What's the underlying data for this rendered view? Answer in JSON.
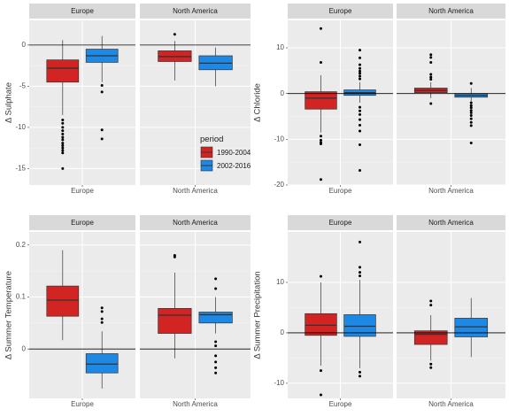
{
  "legend": {
    "title": "period",
    "position": "inside-top-left-panel-right",
    "items": [
      {
        "label": "1990-2004",
        "color": "#d32424"
      },
      {
        "label": "2002-2016",
        "color": "#1e88e5"
      }
    ]
  },
  "colors": {
    "panel_background": "#ebebeb",
    "strip_background": "#d9d9d9",
    "grid_major": "#ffffff",
    "zero_line": "#000000",
    "outlier": "#000000"
  },
  "chart_data": [
    {
      "type": "boxplot",
      "ylabel": "Δ Sulphate",
      "ylim": [
        -17,
        3
      ],
      "yticks": [
        0,
        -5,
        -10,
        -15
      ],
      "facets": [
        {
          "strip": "Europe",
          "xlabel": "Europe",
          "boxes": [
            {
              "series": "1990-2004",
              "q1": -4.5,
              "median": -2.8,
              "q3": -1.8,
              "whisker_low": -8.5,
              "whisker_high": 0.6,
              "outliers": [
                -9.1,
                -9.5,
                -10.0,
                -10.4,
                -10.8,
                -11.2,
                -11.5,
                -11.9,
                -12.2,
                -12.5,
                -12.8,
                -13.1,
                -15.0
              ]
            },
            {
              "series": "2002-2016",
              "q1": -2.1,
              "median": -1.3,
              "q3": -0.5,
              "whisker_low": -4.5,
              "whisker_high": 1.1,
              "outliers": [
                -4.9,
                -5.7,
                -10.3,
                -11.4
              ]
            }
          ]
        },
        {
          "strip": "North America",
          "xlabel": "North America",
          "boxes": [
            {
              "series": "1990-2004",
              "q1": -2.0,
              "median": -1.4,
              "q3": -0.7,
              "whisker_low": -4.3,
              "whisker_high": 0.5,
              "outliers": [
                1.3
              ]
            },
            {
              "series": "2002-2016",
              "q1": -3.0,
              "median": -2.2,
              "q3": -1.3,
              "whisker_low": -5.0,
              "whisker_high": -0.3,
              "outliers": []
            }
          ]
        }
      ]
    },
    {
      "type": "boxplot",
      "ylabel": "Δ Chloride",
      "ylim": [
        -20,
        16
      ],
      "yticks": [
        10,
        0,
        -10,
        -20
      ],
      "facets": [
        {
          "strip": "Europe",
          "xlabel": "Europe",
          "boxes": [
            {
              "series": "1990-2004",
              "q1": -3.4,
              "median": -1.0,
              "q3": 0.4,
              "whisker_low": -8.5,
              "whisker_high": 4.0,
              "outliers": [
                14.2,
                6.8,
                -9.3,
                -10.2,
                -10.7,
                -11.0,
                -18.8
              ]
            },
            {
              "series": "2002-2016",
              "q1": -0.4,
              "median": 0.2,
              "q3": 0.8,
              "whisker_low": -2.0,
              "whisker_high": 2.5,
              "outliers": [
                9.5,
                7.8,
                6.3,
                5.5,
                4.9,
                4.4,
                3.8,
                3.2,
                -3.0,
                -3.8,
                -4.6,
                -5.7,
                -6.9,
                -8.2,
                -11.2,
                -16.8
              ]
            }
          ]
        },
        {
          "strip": "North America",
          "xlabel": "North America",
          "boxes": [
            {
              "series": "1990-2004",
              "q1": 0.2,
              "median": 0.7,
              "q3": 1.2,
              "whisker_low": -1.0,
              "whisker_high": 2.5,
              "outliers": [
                8.5,
                7.9,
                6.8,
                4.2,
                3.6,
                3.1,
                -2.2
              ]
            },
            {
              "series": "2002-2016",
              "q1": -0.8,
              "median": -0.4,
              "q3": 0.0,
              "whisker_low": -1.6,
              "whisker_high": 1.2,
              "outliers": [
                2.2,
                -2.0,
                -2.6,
                -3.1,
                -3.7,
                -4.2,
                -4.8,
                -5.5,
                -6.3,
                -7.0,
                -10.8
              ]
            }
          ]
        }
      ]
    },
    {
      "type": "boxplot",
      "ylabel": "Δ Summer Temperature",
      "ylim": [
        -0.095,
        0.225
      ],
      "yticks": [
        0.2,
        0.1,
        0.0
      ],
      "facets": [
        {
          "strip": "Europe",
          "xlabel": "Europe",
          "boxes": [
            {
              "series": "1990-2004",
              "q1": 0.063,
              "median": 0.094,
              "q3": 0.121,
              "whisker_low": 0.017,
              "whisker_high": 0.19,
              "outliers": []
            },
            {
              "series": "2002-2016",
              "q1": -0.046,
              "median": -0.029,
              "q3": -0.009,
              "whisker_low": -0.076,
              "whisker_high": 0.034,
              "outliers": [
                0.079,
                0.072,
                0.058,
                0.051
              ]
            }
          ]
        },
        {
          "strip": "North America",
          "xlabel": "North America",
          "boxes": [
            {
              "series": "1990-2004",
              "q1": 0.03,
              "median": 0.065,
              "q3": 0.078,
              "whisker_low": -0.018,
              "whisker_high": 0.147,
              "outliers": [
                0.18,
                0.177
              ]
            },
            {
              "series": "2002-2016",
              "q1": 0.05,
              "median": 0.066,
              "q3": 0.071,
              "whisker_low": 0.03,
              "whisker_high": 0.1,
              "outliers": [
                0.135,
                0.116,
                0.014,
                0.006,
                -0.013,
                -0.025,
                -0.036,
                -0.046
              ]
            }
          ]
        }
      ]
    },
    {
      "type": "boxplot",
      "ylabel": "Δ Summer Precipitation",
      "ylim": [
        -13,
        20
      ],
      "yticks": [
        10,
        0,
        -10
      ],
      "facets": [
        {
          "strip": "Europe",
          "xlabel": "Europe",
          "boxes": [
            {
              "series": "1990-2004",
              "q1": -0.5,
              "median": 1.5,
              "q3": 3.8,
              "whisker_low": -6.5,
              "whisker_high": 10.0,
              "outliers": [
                11.2,
                -7.5,
                -12.3
              ]
            },
            {
              "series": "2002-2016",
              "q1": -0.7,
              "median": 1.3,
              "q3": 3.6,
              "whisker_low": -7.0,
              "whisker_high": 10.5,
              "outliers": [
                18.0,
                13.0,
                12.0,
                11.3,
                -7.8,
                -8.6
              ]
            }
          ]
        },
        {
          "strip": "North America",
          "xlabel": "North America",
          "boxes": [
            {
              "series": "1990-2004",
              "q1": -2.3,
              "median": -0.3,
              "q3": 0.4,
              "whisker_low": -5.5,
              "whisker_high": 3.5,
              "outliers": [
                6.3,
                5.5,
                -6.2,
                -6.9
              ]
            },
            {
              "series": "2002-2016",
              "q1": -0.8,
              "median": 1.2,
              "q3": 2.9,
              "whisker_low": -4.8,
              "whisker_high": 6.9,
              "outliers": []
            }
          ]
        }
      ]
    }
  ]
}
